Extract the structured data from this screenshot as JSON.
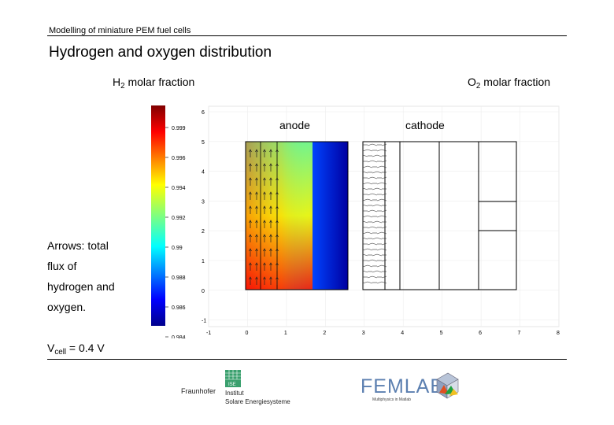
{
  "header": "Modelling of miniature PEM fuel cells",
  "title": "Hydrogen and oxygen distribution",
  "h2_label": {
    "species": "H",
    "sub": "2",
    "text": " molar fraction"
  },
  "o2_label": {
    "species": "O",
    "sub": "2",
    "text": " molar fraction"
  },
  "notes": [
    "Arrows: total",
    "flux of",
    "hydrogen and",
    "oxygen."
  ],
  "vcell": {
    "v": "V",
    "sub": "cell",
    "text": " = 0.4 V"
  },
  "plot": {
    "colorbar_ticks": [
      "0.999",
      "0.996",
      "0.994",
      "0.992",
      "0.99",
      "0.988",
      "0.986",
      "0.984"
    ],
    "x_ticks": [
      "-1",
      "0",
      "1",
      "2",
      "3",
      "4",
      "5",
      "6",
      "7",
      "8"
    ],
    "y_ticks": [
      "6",
      "5",
      "4",
      "3",
      "2",
      "1",
      "0",
      "-1"
    ],
    "anode_label": "anode",
    "cathode_label": "cathode"
  },
  "logos": {
    "fraunhofer": "Fraunhofer",
    "ise_line1": "Institut",
    "ise_line2": "Solare Energiesysteme",
    "ise_badge": "ISE",
    "femlab": "FEMLAB",
    "femlab_tag": "Multiphysics in Matlab"
  }
}
